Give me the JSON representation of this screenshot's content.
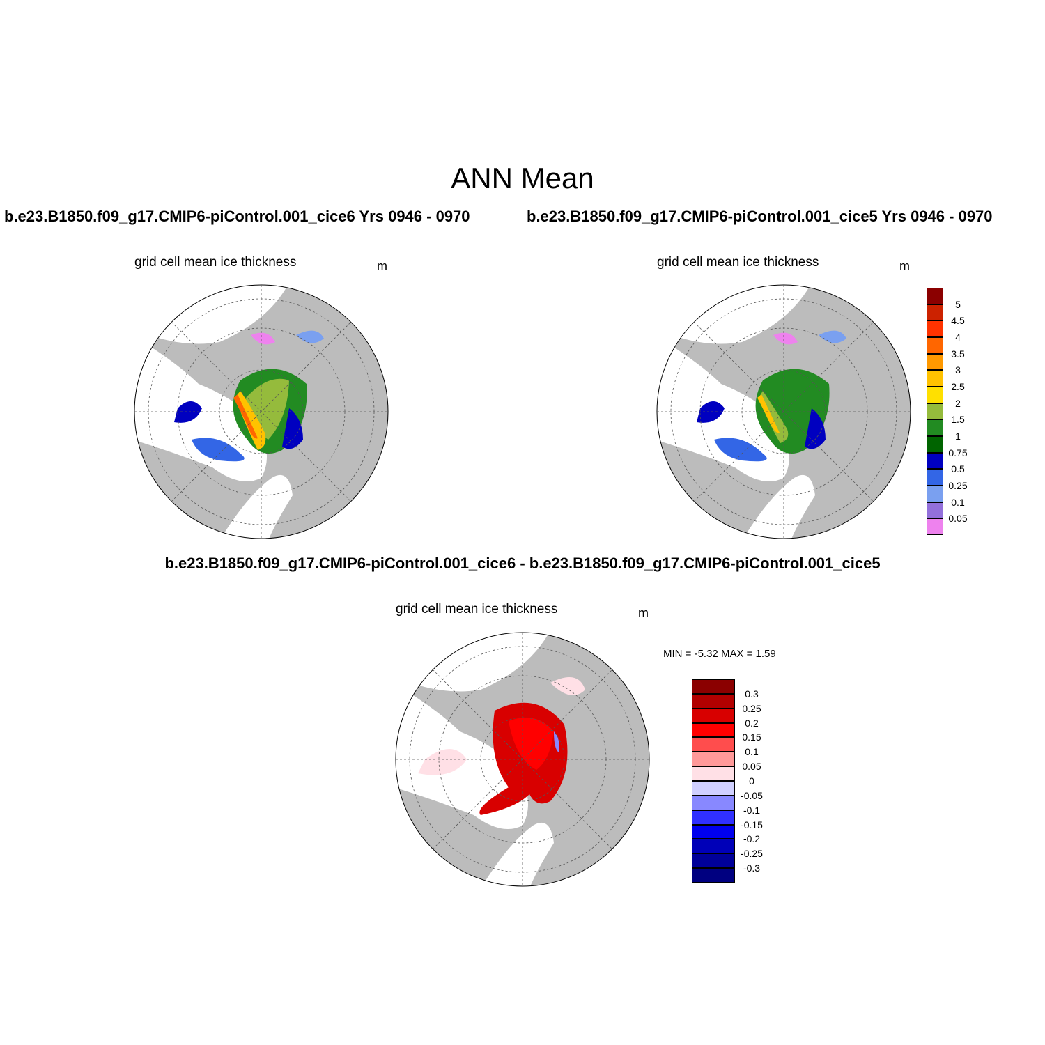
{
  "title": "ANN Mean",
  "panels": {
    "left": {
      "case_title": "b.e23.B1850.f09_g17.CMIP6-piControl.001_cice6  Yrs 0946 - 0970",
      "variable": "grid cell mean ice thickness",
      "units": "m"
    },
    "right": {
      "case_title": "b.e23.B1850.f09_g17.CMIP6-piControl.001_cice5  Yrs 0946 - 0970",
      "variable": "grid cell mean ice thickness",
      "units": "m"
    },
    "diff": {
      "case_title": "b.e23.B1850.f09_g17.CMIP6-piControl.001_cice6 - b.e23.B1850.f09_g17.CMIP6-piControl.001_cice5",
      "variable": "grid cell mean ice thickness",
      "units": "m",
      "minmax": "MIN =  -5.32 MAX =   1.59"
    }
  },
  "colorbars": {
    "thickness": {
      "labels": [
        "5",
        "4.5",
        "4",
        "3.5",
        "3",
        "2.5",
        "2",
        "1.5",
        "1",
        "0.75",
        "0.5",
        "0.25",
        "0.1",
        "0.05"
      ],
      "colors": [
        "#8b0000",
        "#cc2200",
        "#ff3300",
        "#ff6600",
        "#ff9900",
        "#ffc200",
        "#ffe000",
        "#95bb3c",
        "#228b22",
        "#006400",
        "#0000c0",
        "#3366e6",
        "#7aa0f0",
        "#9370db",
        "#ee82ee"
      ]
    },
    "difference": {
      "labels": [
        "0.3",
        "0.25",
        "0.2",
        "0.15",
        "0.1",
        "0.05",
        "0",
        "-0.05",
        "-0.1",
        "-0.15",
        "-0.2",
        "-0.25",
        "-0.3"
      ],
      "colors": [
        "#8b0000",
        "#b20000",
        "#d80000",
        "#ff0000",
        "#ff4d4d",
        "#ff9999",
        "#ffe0e6",
        "#d0d0ff",
        "#8888ff",
        "#3030ff",
        "#0000ee",
        "#0000b8",
        "#000099",
        "#000080"
      ]
    }
  },
  "map_colors": {
    "land": "#bcbcbc",
    "ocean": "#ffffff",
    "ice_green": "#228b22",
    "ice_light_green": "#95bb3c",
    "ice_dark_green": "#006400",
    "ice_yellow": "#ffc200",
    "ice_orange": "#ff6600",
    "ice_blue": "#0000c0",
    "ice_mid_blue": "#3366e6",
    "ice_light_blue": "#7aa0f0",
    "ice_violet": "#ee82ee",
    "diff_red": "#d80000",
    "diff_bright_red": "#ff0000",
    "diff_pink": "#ffe0e6",
    "diff_blue": "#8888ff"
  }
}
